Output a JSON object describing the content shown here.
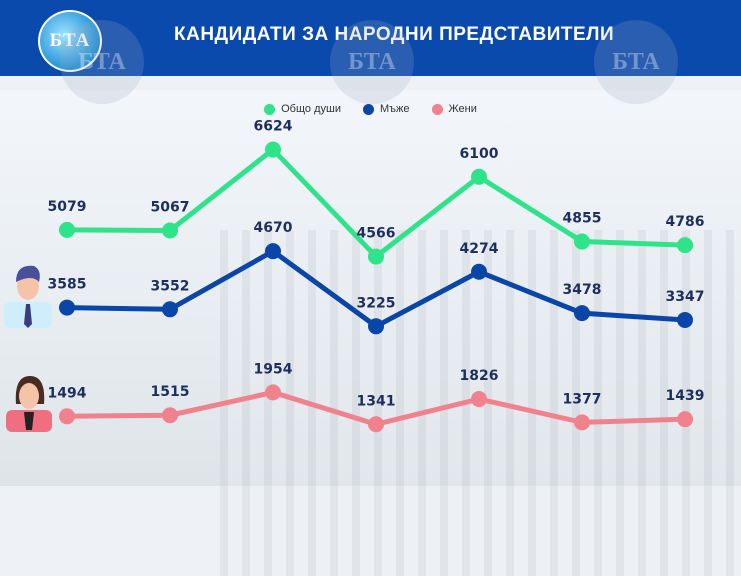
{
  "header": {
    "title": "КАНДИДАТИ ЗА НАРОДНИ ПРЕДСТАВИТЕЛИ",
    "logo_text": "БТА"
  },
  "chart_data": {
    "type": "line",
    "title": "КАНДИДАТИ ЗА НАРОДНИ ПРЕДСТАВИТЕЛИ",
    "legend_position": "top-center",
    "grid": false,
    "axes_visible": false,
    "series": [
      {
        "name": "Общо души",
        "color": "#2fe38a",
        "values": [
          5079,
          5067,
          6624,
          4566,
          6100,
          4855,
          4786
        ]
      },
      {
        "name": "Мъже",
        "color": "#0a45a8",
        "values": [
          3585,
          3552,
          4670,
          3225,
          4274,
          3478,
          3347
        ]
      },
      {
        "name": "Жени",
        "color": "#f0828e",
        "values": [
          1494,
          1515,
          1954,
          1341,
          1826,
          1377,
          1439
        ]
      }
    ]
  }
}
